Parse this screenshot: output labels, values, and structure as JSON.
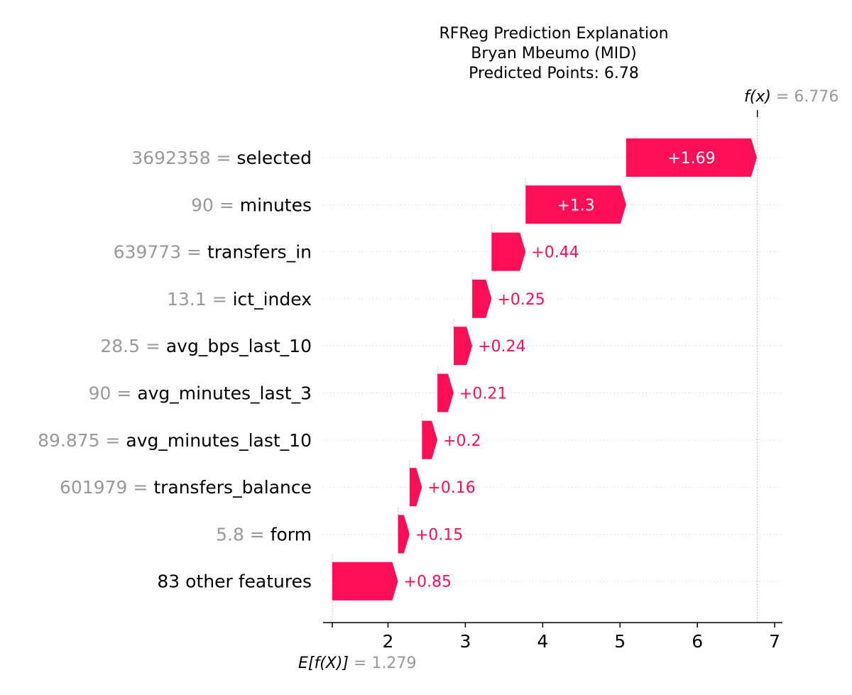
{
  "chart_data": {
    "type": "bar",
    "subtype": "waterfall",
    "title": [
      "RFReg Prediction Explanation",
      "Bryan Mbeumo (MID)",
      "Predicted Points: 6.78"
    ],
    "base_value": 1.279,
    "base_value_text": "1.279",
    "output_value": 6.776,
    "output_value_text": "6.776",
    "base_label": "E[f(X)]",
    "output_label": "f(x)",
    "features": [
      {
        "value": "3692358",
        "name": "selected",
        "contribution": 1.69,
        "label": "+1.69"
      },
      {
        "value": "90",
        "name": "minutes",
        "contribution": 1.3,
        "label": "+1.3"
      },
      {
        "value": "639773",
        "name": "transfers_in",
        "contribution": 0.44,
        "label": "+0.44"
      },
      {
        "value": "13.1",
        "name": "ict_index",
        "contribution": 0.25,
        "label": "+0.25"
      },
      {
        "value": "28.5",
        "name": "avg_bps_last_10",
        "contribution": 0.24,
        "label": "+0.24"
      },
      {
        "value": "90",
        "name": "avg_minutes_last_3",
        "contribution": 0.21,
        "label": "+0.21"
      },
      {
        "value": "89.875",
        "name": "avg_minutes_last_10",
        "contribution": 0.2,
        "label": "+0.2"
      },
      {
        "value": "601979",
        "name": "transfers_balance",
        "contribution": 0.16,
        "label": "+0.16"
      },
      {
        "value": "5.8",
        "name": "form",
        "contribution": 0.15,
        "label": "+0.15"
      },
      {
        "value": "",
        "name": "83 other features",
        "contribution": 0.85,
        "label": "+0.85"
      }
    ],
    "xticks": [
      2,
      3,
      4,
      5,
      6,
      7
    ],
    "xlim": [
      1.16,
      7.1
    ],
    "bar_color": "#ff0d57",
    "grid": "dotted-horizontal"
  }
}
